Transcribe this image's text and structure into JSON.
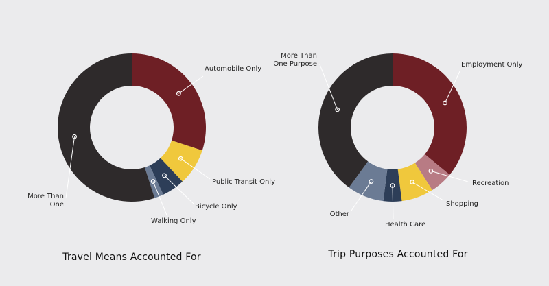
{
  "chart_data": [
    {
      "type": "pie",
      "style": "donut",
      "title": "Travel Means Accounted For",
      "categories": [
        "Automobile Only",
        "Public Transit Only",
        "Bicycle Only",
        "Walking Only",
        "More Than One"
      ],
      "values": [
        30,
        8,
        5,
        2,
        55
      ],
      "colors": [
        "#6e1f25",
        "#f0c83c",
        "#2d3e58",
        "#6b7b94",
        "#2e2a2b"
      ]
    },
    {
      "type": "pie",
      "style": "donut",
      "title": "Trip Purposes Accounted For",
      "categories": [
        "Employment Only",
        "Recreation",
        "Shopping",
        "Health Care",
        "Other",
        "More Than One Purpose"
      ],
      "values": [
        36,
        5,
        7,
        4,
        8,
        40
      ],
      "colors": [
        "#6e1f25",
        "#b87b84",
        "#f0c83c",
        "#2d3e58",
        "#6b7b94",
        "#2e2a2b"
      ]
    }
  ]
}
